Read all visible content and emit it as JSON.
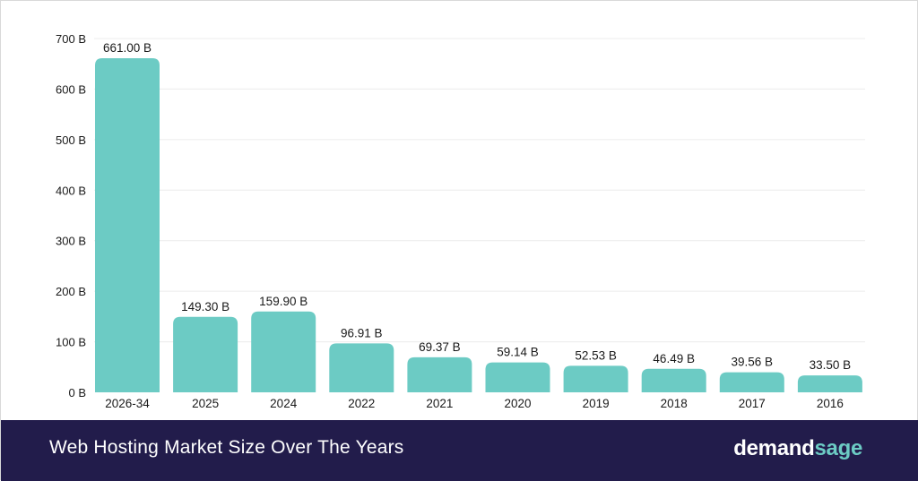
{
  "footer": {
    "title": "Web Hosting Market Size Over The Years",
    "brand_part1": "demand",
    "brand_part2": "sage"
  },
  "colors": {
    "bar": "#6ccbc4",
    "footer_background": "#221c4b",
    "grid": "#ececec",
    "text": "#1a1a1a"
  },
  "chart_data": {
    "type": "bar",
    "categories": [
      "2026-34",
      "2025",
      "2024",
      "2022",
      "2021",
      "2020",
      "2019",
      "2018",
      "2017",
      "2016"
    ],
    "values": [
      661.0,
      149.3,
      159.9,
      96.91,
      69.37,
      59.14,
      52.53,
      46.49,
      39.56,
      33.5
    ],
    "data_labels": [
      "661.00 B",
      "149.30 B",
      "159.90 B",
      "96.91 B",
      "69.37 B",
      "59.14 B",
      "52.53 B",
      "46.49 B",
      "39.56 B",
      "33.50 B"
    ],
    "yticks": [
      0,
      100,
      200,
      300,
      400,
      500,
      600,
      700
    ],
    "ytick_labels": [
      "0 B",
      "100 B",
      "200 B",
      "300 B",
      "400 B",
      "500 B",
      "600 B",
      "700 B"
    ],
    "ylim": [
      0,
      700
    ],
    "grid": true,
    "title": "",
    "xlabel": "",
    "ylabel": ""
  }
}
